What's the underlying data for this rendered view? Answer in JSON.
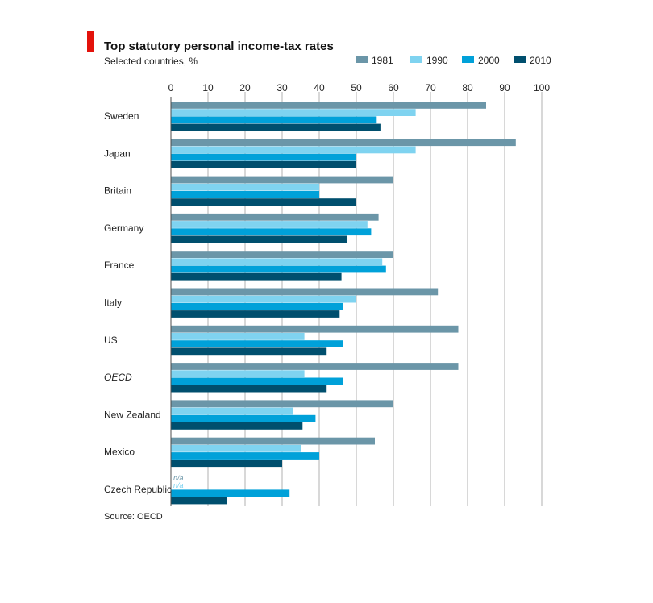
{
  "chart_data": {
    "type": "bar",
    "orientation": "horizontal",
    "title": "Top statutory personal income-tax rates",
    "subtitle": "Selected countries, %",
    "source": "Source: OECD",
    "xlim": [
      0,
      100
    ],
    "x_ticks": [
      0,
      10,
      20,
      30,
      40,
      50,
      60,
      70,
      80,
      90,
      100
    ],
    "grid": true,
    "legend_position": "top-right",
    "categories": [
      "Sweden",
      "Japan",
      "Britain",
      "Germany",
      "France",
      "Italy",
      "US",
      "OECD",
      "New Zealand",
      "Mexico",
      "Czech Republic"
    ],
    "italic_categories": [
      "OECD"
    ],
    "missing_label": "n/a",
    "series": [
      {
        "name": "1981",
        "color": "#6b96a8",
        "values": [
          85,
          93,
          60,
          56,
          60,
          72,
          77.5,
          77.5,
          60,
          55,
          null
        ]
      },
      {
        "name": "1990",
        "color": "#7fd3f0",
        "values": [
          66,
          66,
          40,
          53,
          57,
          50,
          36,
          36,
          33,
          35,
          null
        ]
      },
      {
        "name": "2000",
        "color": "#00a1d9",
        "values": [
          55.5,
          50,
          40,
          54,
          58,
          46.5,
          46.5,
          46.5,
          39,
          40,
          32
        ]
      },
      {
        "name": "2010",
        "color": "#004f6e",
        "values": [
          56.5,
          50,
          50,
          47.5,
          46,
          45.5,
          42,
          42,
          35.5,
          30,
          15
        ]
      }
    ]
  },
  "colors": {
    "accent_bar": "#e3120b",
    "grid": "#bdbdbd",
    "axis": "#4d4d4d"
  }
}
